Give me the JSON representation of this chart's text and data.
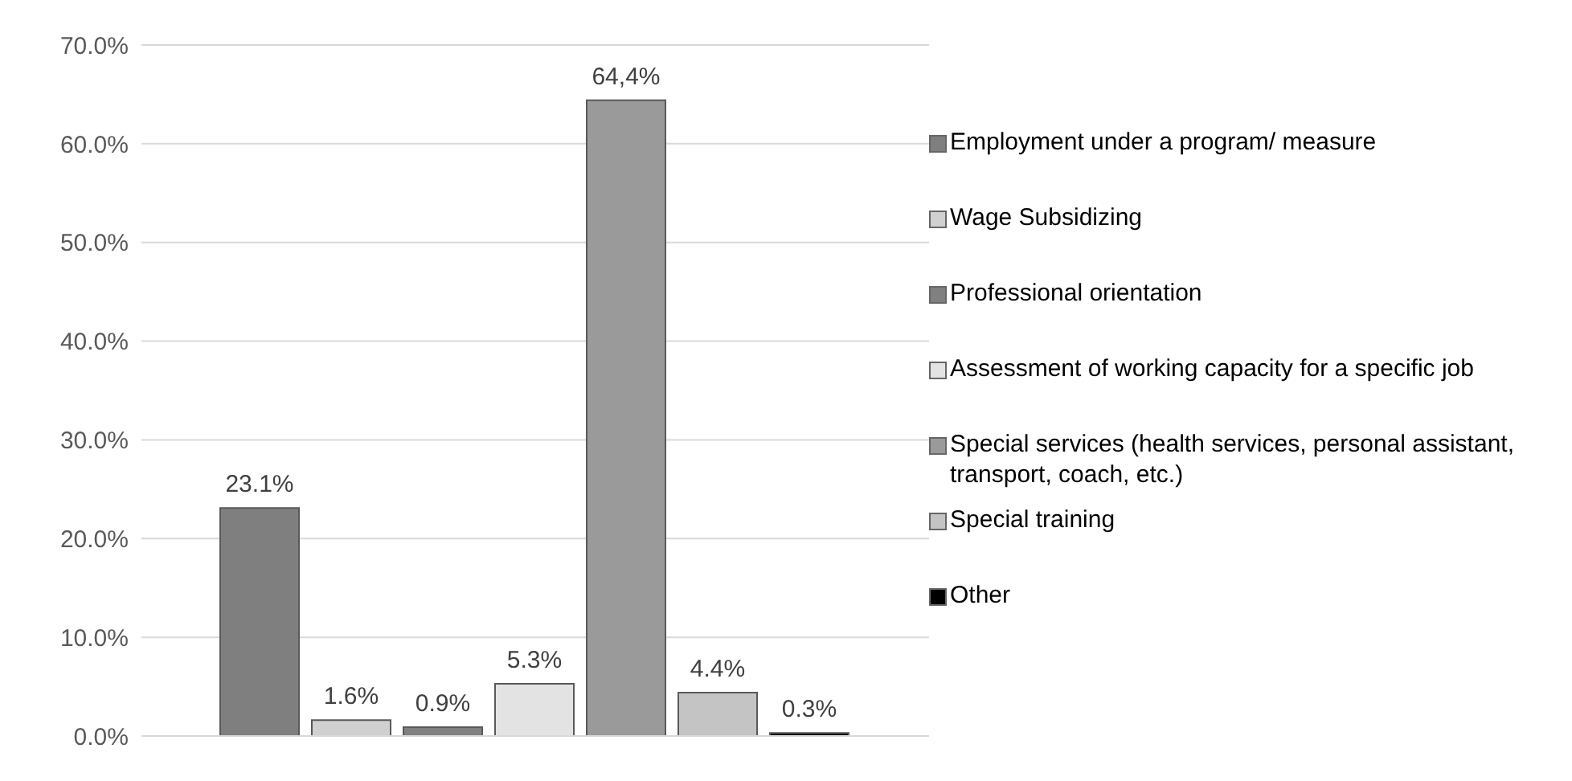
{
  "chart_data": {
    "type": "bar",
    "categories": [
      null
    ],
    "series": [
      {
        "name": "Employment under a program/ measure",
        "color": "#7f7f7f",
        "values": [
          23.1
        ],
        "value_labels": [
          "23.1%"
        ]
      },
      {
        "name": "Wage Subsidizing",
        "color": "#d0d0d0",
        "values": [
          1.6
        ],
        "value_labels": [
          "1.6%"
        ]
      },
      {
        "name": "Professional orientation",
        "color": "#808080",
        "values": [
          0.9
        ],
        "value_labels": [
          "0.9%"
        ]
      },
      {
        "name": "Assessment of working capacity for a specific job",
        "color": "#e3e3e3",
        "values": [
          5.3
        ],
        "value_labels": [
          "5.3%"
        ]
      },
      {
        "name": "Special services (health services, personal assistant, transport, coach, etc.)",
        "color": "#9a9a9a",
        "values": [
          64.4
        ],
        "value_labels": [
          "64,4%"
        ]
      },
      {
        "name": "Special training",
        "color": "#c4c4c4",
        "values": [
          4.4
        ],
        "value_labels": [
          "4.4%"
        ]
      },
      {
        "name": "Other",
        "color": "#000000",
        "values": [
          0.3
        ],
        "value_labels": [
          "0.3%"
        ]
      }
    ],
    "ylim": [
      0,
      70
    ],
    "yticks": [
      {
        "value": 0,
        "label": "0.0%"
      },
      {
        "value": 10,
        "label": "10.0%"
      },
      {
        "value": 20,
        "label": "20.0%"
      },
      {
        "value": 30,
        "label": "30.0%"
      },
      {
        "value": 40,
        "label": "40.0%"
      },
      {
        "value": 50,
        "label": "50.0%"
      },
      {
        "value": 60,
        "label": "60.0%"
      },
      {
        "value": 70,
        "label": "70.0%"
      }
    ],
    "grid": "y",
    "legend": "right"
  }
}
